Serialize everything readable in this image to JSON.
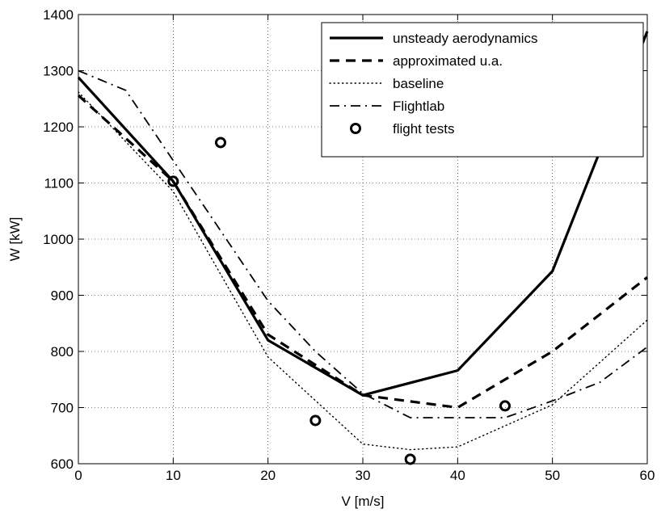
{
  "chart_data": {
    "type": "line",
    "title": "",
    "xlabel": "V [m/s]",
    "ylabel": "W [kW]",
    "xlim": [
      0,
      60
    ],
    "ylim": [
      600,
      1400
    ],
    "xticks": [
      0,
      10,
      20,
      30,
      40,
      50,
      60
    ],
    "yticks": [
      600,
      700,
      800,
      900,
      1000,
      1100,
      1200,
      1300,
      1400
    ],
    "grid": true,
    "legend_position": "top-right",
    "series": [
      {
        "name": "unsteady aerodynamics",
        "style": "solid",
        "color": "#000000",
        "points": [
          [
            0,
            1288
          ],
          [
            10,
            1103
          ],
          [
            20,
            820
          ],
          [
            30,
            722
          ],
          [
            40,
            766
          ],
          [
            50,
            943
          ],
          [
            60,
            1370
          ]
        ]
      },
      {
        "name": "approximated u.a.",
        "style": "dashed",
        "color": "#000000",
        "points": [
          [
            0,
            1256
          ],
          [
            10,
            1103
          ],
          [
            20,
            830
          ],
          [
            30,
            722
          ],
          [
            40,
            700
          ],
          [
            50,
            800
          ],
          [
            60,
            932
          ]
        ]
      },
      {
        "name": "baseline",
        "style": "dotted",
        "color": "#000000",
        "points": [
          [
            0,
            1262
          ],
          [
            10,
            1085
          ],
          [
            20,
            790
          ],
          [
            30,
            635
          ],
          [
            35,
            625
          ],
          [
            40,
            630
          ],
          [
            50,
            705
          ],
          [
            60,
            856
          ]
        ]
      },
      {
        "name": "Flightlab",
        "style": "dashdot",
        "color": "#000000",
        "points": [
          [
            0,
            1300
          ],
          [
            5,
            1265
          ],
          [
            10,
            1140
          ],
          [
            20,
            890
          ],
          [
            25,
            800
          ],
          [
            30,
            725
          ],
          [
            35,
            682
          ],
          [
            40,
            682
          ],
          [
            45,
            682
          ],
          [
            50,
            712
          ],
          [
            55,
            745
          ],
          [
            60,
            808
          ]
        ]
      },
      {
        "name": "flight tests",
        "style": "markers",
        "color": "#000000",
        "points": [
          [
            10,
            1103
          ],
          [
            15,
            1172
          ],
          [
            25,
            677
          ],
          [
            35,
            608
          ],
          [
            45,
            703
          ]
        ]
      }
    ]
  }
}
